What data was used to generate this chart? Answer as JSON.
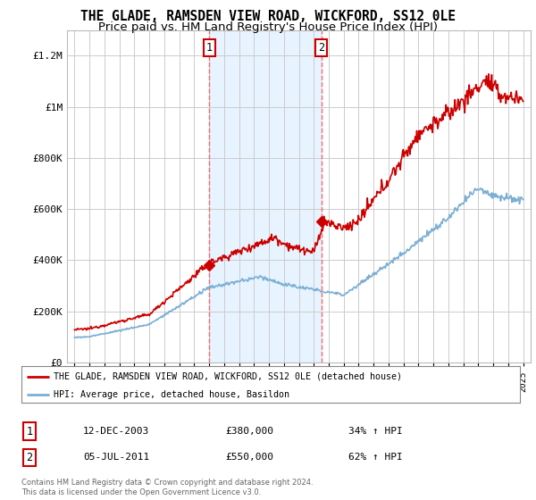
{
  "title": "THE GLADE, RAMSDEN VIEW ROAD, WICKFORD, SS12 0LE",
  "subtitle": "Price paid vs. HM Land Registry's House Price Index (HPI)",
  "ylabel_ticks": [
    "£0",
    "£200K",
    "£400K",
    "£600K",
    "£800K",
    "£1M",
    "£1.2M"
  ],
  "ylim": [
    0,
    1300000
  ],
  "yticks": [
    0,
    200000,
    400000,
    600000,
    800000,
    1000000,
    1200000
  ],
  "xlim_start": 1994.5,
  "xlim_end": 2025.5,
  "legend_line1": "THE GLADE, RAMSDEN VIEW ROAD, WICKFORD, SS12 0LE (detached house)",
  "legend_line2": "HPI: Average price, detached house, Basildon",
  "marker1_date": "12-DEC-2003",
  "marker1_price": "£380,000",
  "marker1_hpi": "34% ↑ HPI",
  "marker1_x": 2004.0,
  "marker1_y": 380000,
  "marker2_date": "05-JUL-2011",
  "marker2_price": "£550,000",
  "marker2_hpi": "62% ↑ HPI",
  "marker2_x": 2011.5,
  "marker2_y": 550000,
  "red_color": "#CC0000",
  "blue_color": "#7BAFD4",
  "bg_color": "#FFFFFF",
  "plot_bg_color": "#FFFFFF",
  "grid_color": "#CCCCCC",
  "vline_color": "#FF6666",
  "shadow_color": "#DDEEFF",
  "footer": "Contains HM Land Registry data © Crown copyright and database right 2024.\nThis data is licensed under the Open Government Licence v3.0.",
  "title_fontsize": 10.5,
  "subtitle_fontsize": 9.5
}
